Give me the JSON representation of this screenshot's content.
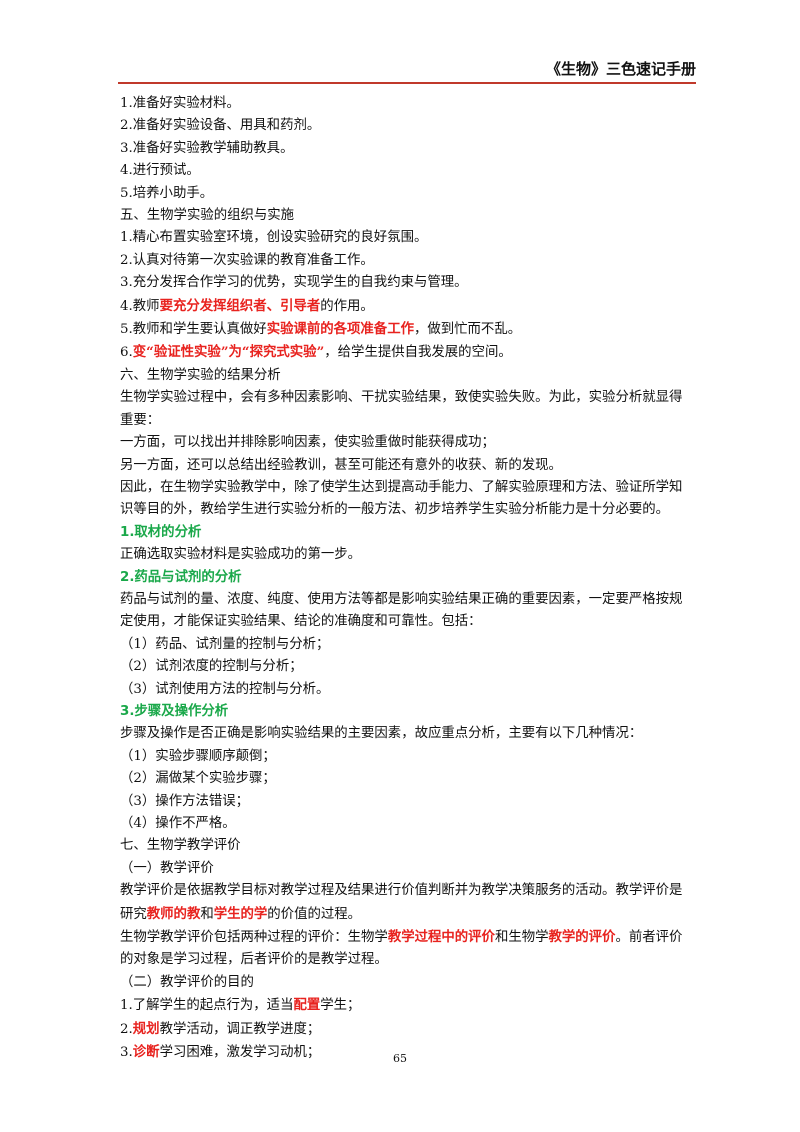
{
  "header": {
    "title": "《生物》三色速记手册"
  },
  "colors": {
    "header_rule": "#c0392b",
    "highlight_red": "#e8231f",
    "heading_green": "#1aa84a"
  },
  "lines": [
    {
      "segments": [
        {
          "text": "1.准备好实验材料。"
        }
      ]
    },
    {
      "segments": [
        {
          "text": "2.准备好实验设备、用具和药剂。"
        }
      ]
    },
    {
      "segments": [
        {
          "text": "3.准备好实验教学辅助教具。"
        }
      ]
    },
    {
      "segments": [
        {
          "text": "4.进行预试。"
        }
      ]
    },
    {
      "segments": [
        {
          "text": "5.培养小助手。"
        }
      ]
    },
    {
      "segments": [
        {
          "text": "五、生物学实验的组织与实施"
        }
      ]
    },
    {
      "segments": [
        {
          "text": "1.精心布置实验室环境，创设实验研究的良好氛围。"
        }
      ]
    },
    {
      "segments": [
        {
          "text": "2.认真对待第一次实验课的教育准备工作。"
        }
      ]
    },
    {
      "segments": [
        {
          "text": "3.充分发挥合作学习的优势，实现学生的自我约束与管理。"
        }
      ]
    },
    {
      "segments": [
        {
          "text": "4.教师"
        },
        {
          "text": "要充分发挥组织者、引导者",
          "style": "red"
        },
        {
          "text": "的作用。"
        }
      ]
    },
    {
      "segments": [
        {
          "text": "5.教师和学生要认真做好"
        },
        {
          "text": "实验课前的各项准备工作",
          "style": "red"
        },
        {
          "text": "，做到忙而不乱。"
        }
      ]
    },
    {
      "segments": [
        {
          "text": "6."
        },
        {
          "text": "变“验证性实验”为“探究式实验”",
          "style": "red"
        },
        {
          "text": "，给学生提供自我发展的空间。"
        }
      ]
    },
    {
      "segments": [
        {
          "text": "六、生物学实验的结果分析"
        }
      ]
    },
    {
      "segments": [
        {
          "text": "生物学实验过程中，会有多种因素影响、干扰实验结果，致使实验失败。为此，实验分析就显得重要："
        }
      ]
    },
    {
      "segments": [
        {
          "text": "一方面，可以找出并排除影响因素，使实验重做时能获得成功；"
        }
      ]
    },
    {
      "segments": [
        {
          "text": "另一方面，还可以总结出经验教训，甚至可能还有意外的收获、新的发现。"
        }
      ]
    },
    {
      "segments": [
        {
          "text": "因此，在生物学实验教学中，除了使学生达到提高动手能力、了解实验原理和方法、验证所学知识等目的外，教给学生进行实验分析的一般方法、初步培养学生实验分析能力是十分必要的。"
        }
      ]
    },
    {
      "segments": [
        {
          "text": "1.取材的分析",
          "style": "green"
        }
      ]
    },
    {
      "segments": [
        {
          "text": "正确选取实验材料是实验成功的第一步。"
        }
      ]
    },
    {
      "segments": [
        {
          "text": "2.药品与试剂的分析",
          "style": "green"
        }
      ]
    },
    {
      "segments": [
        {
          "text": "药品与试剂的量、浓度、纯度、使用方法等都是影响实验结果正确的重要因素，一定要严格按规定使用，才能保证实验结果、结论的准确度和可靠性。包括："
        }
      ]
    },
    {
      "segments": [
        {
          "text": "（1）药品、试剂量的控制与分析；"
        }
      ]
    },
    {
      "segments": [
        {
          "text": "（2）试剂浓度的控制与分析；"
        }
      ]
    },
    {
      "segments": [
        {
          "text": "（3）试剂使用方法的控制与分析。"
        }
      ]
    },
    {
      "segments": [
        {
          "text": "3.步骤及操作分析",
          "style": "green"
        }
      ]
    },
    {
      "segments": [
        {
          "text": "步骤及操作是否正确是影响实验结果的主要因素，故应重点分析，主要有以下几种情况："
        }
      ]
    },
    {
      "segments": [
        {
          "text": "（1）实验步骤顺序颠倒；"
        }
      ]
    },
    {
      "segments": [
        {
          "text": "（2）漏做某个实验步骤；"
        }
      ]
    },
    {
      "segments": [
        {
          "text": "（3）操作方法错误；"
        }
      ]
    },
    {
      "segments": [
        {
          "text": "（4）操作不严格。"
        }
      ]
    },
    {
      "segments": [
        {
          "text": "七、生物学教学评价"
        }
      ]
    },
    {
      "segments": [
        {
          "text": "（一）教学评价"
        }
      ]
    },
    {
      "segments": [
        {
          "text": "教学评价是依据教学目标对教学过程及结果进行价值判断并为教学决策服务的活动。教学评价是研究"
        },
        {
          "text": "教师的教",
          "style": "red"
        },
        {
          "text": "和"
        },
        {
          "text": "学生的学",
          "style": "red"
        },
        {
          "text": "的价值的过程。"
        }
      ]
    },
    {
      "segments": [
        {
          "text": "生物学教学评价包括两种过程的评价：生物学"
        },
        {
          "text": "教学过程中的评价",
          "style": "red"
        },
        {
          "text": "和生物学"
        },
        {
          "text": "教学的评价",
          "style": "red"
        },
        {
          "text": "。前者评价的对象是学习过程，后者评价的是教学过程。"
        }
      ]
    },
    {
      "segments": [
        {
          "text": "（二）教学评价的目的"
        }
      ]
    },
    {
      "segments": [
        {
          "text": "1.了解学生的起点行为，适当"
        },
        {
          "text": "配置",
          "style": "red"
        },
        {
          "text": "学生；"
        }
      ]
    },
    {
      "segments": [
        {
          "text": "2."
        },
        {
          "text": "规划",
          "style": "red"
        },
        {
          "text": "教学活动，调正教学进度；"
        }
      ]
    },
    {
      "segments": [
        {
          "text": "3."
        },
        {
          "text": "诊断",
          "style": "red"
        },
        {
          "text": "学习困难，激发学习动机；"
        }
      ]
    }
  ],
  "footer": {
    "page_number": "65"
  }
}
